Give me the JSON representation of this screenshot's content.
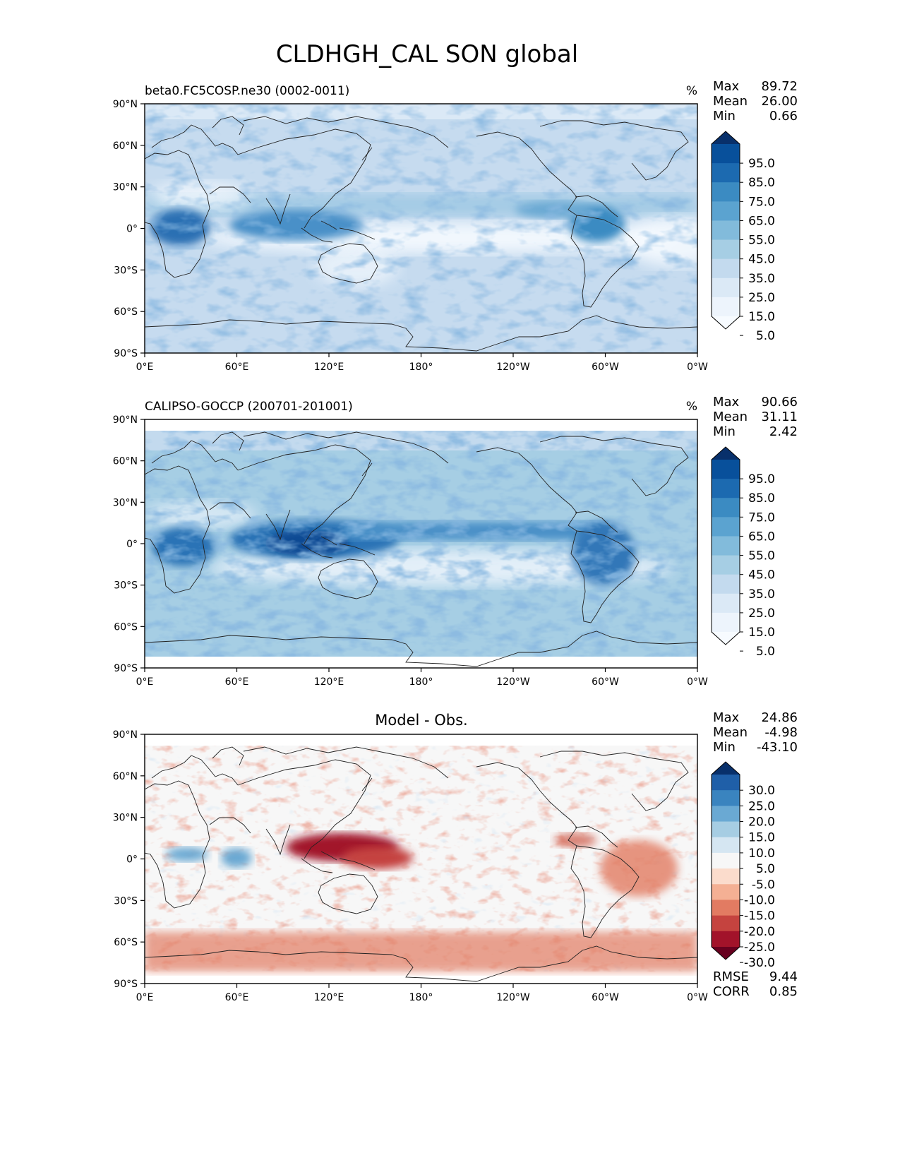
{
  "page": {
    "title": "CLDHGH_CAL SON global"
  },
  "lat_ticks": [
    "90°N",
    "60°N",
    "30°N",
    "0°",
    "30°S",
    "60°S",
    "90°S"
  ],
  "lon_ticks": [
    "0°E",
    "60°E",
    "120°E",
    "180°",
    "120°W",
    "60°W",
    "0°W"
  ],
  "panels": [
    {
      "subtitle_left": "beta0.FC5COSP.ne30 (0002-0011)",
      "subtitle_center": "",
      "units": "%",
      "stats": [
        {
          "label": "Max",
          "value": "89.72"
        },
        {
          "label": "Mean",
          "value": "26.00"
        },
        {
          "label": "Min",
          "value": "0.66"
        }
      ],
      "colorbar": {
        "labels": [
          "95.0",
          "85.0",
          "75.0",
          "65.0",
          "55.0",
          "45.0",
          "35.0",
          "25.0",
          "15.0",
          "5.0"
        ],
        "colors": [
          "#08306b",
          "#08509b",
          "#1c6ab0",
          "#3b8bc2",
          "#5ba3d0",
          "#82bbdb",
          "#a6cee4",
          "#c3daee",
          "#dbe9f6",
          "#edf4fc",
          "#f7fbff"
        ]
      },
      "extra_stats": []
    },
    {
      "subtitle_left": "CALIPSO-GOCCP (200701-201001)",
      "subtitle_center": "",
      "units": "%",
      "stats": [
        {
          "label": "Max",
          "value": "90.66"
        },
        {
          "label": "Mean",
          "value": "31.11"
        },
        {
          "label": "Min",
          "value": "2.42"
        }
      ],
      "colorbar": {
        "labels": [
          "95.0",
          "85.0",
          "75.0",
          "65.0",
          "55.0",
          "45.0",
          "35.0",
          "25.0",
          "15.0",
          "5.0"
        ],
        "colors": [
          "#08306b",
          "#08509b",
          "#1c6ab0",
          "#3b8bc2",
          "#5ba3d0",
          "#82bbdb",
          "#a6cee4",
          "#c3daee",
          "#dbe9f6",
          "#edf4fc",
          "#f7fbff"
        ]
      },
      "extra_stats": []
    },
    {
      "subtitle_left": "",
      "subtitle_center": "Model - Obs.",
      "units": "",
      "stats": [
        {
          "label": "Max",
          "value": "24.86"
        },
        {
          "label": "Mean",
          "value": "-4.98"
        },
        {
          "label": "Min",
          "value": "-43.10"
        }
      ],
      "colorbar": {
        "labels": [
          "30.0",
          "25.0",
          "20.0",
          "15.0",
          "10.0",
          "5.0",
          "-5.0",
          "-10.0",
          "-15.0",
          "-20.0",
          "-25.0",
          "-30.0"
        ],
        "colors": [
          "#08306b",
          "#1f5fa8",
          "#3a84bf",
          "#6aa9d3",
          "#a6cde3",
          "#d5e6f2",
          "#f7f7f7",
          "#fbdccc",
          "#f4b094",
          "#e27b62",
          "#c5433f",
          "#a2132a",
          "#67001f"
        ]
      },
      "extra_stats": [
        {
          "label": "RMSE",
          "value": "9.44"
        },
        {
          "label": "CORR",
          "value": "0.85"
        }
      ]
    }
  ]
}
